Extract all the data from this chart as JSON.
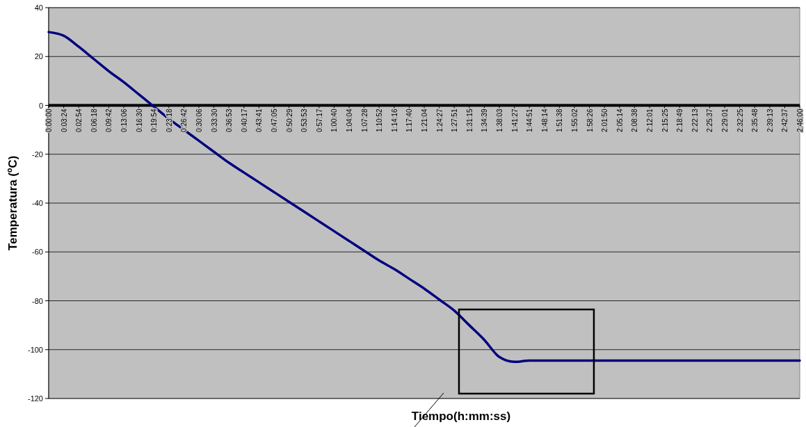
{
  "chart_data": {
    "type": "line",
    "xlabel": "Tiempo(h:mm:ss)",
    "ylabel": "Temperatura (ºC)",
    "categories": [
      "0:00:00",
      "0:03:24",
      "0:02:54",
      "0:06:18",
      "0:09:42",
      "0:13:06",
      "0:16:30",
      "0:19:54",
      "0:23:18",
      "0:26:42",
      "0:30:06",
      "0:33:30",
      "0:36:53",
      "0:40:17",
      "0:43:41",
      "0:47:05",
      "0:50:29",
      "0:53:53",
      "0:57:17",
      "1:00:40",
      "1:04:04",
      "1:07:28",
      "1:10:52",
      "1:14:16",
      "1:17:40",
      "1:21:04",
      "1:24:27",
      "1:27:51",
      "1:31:15",
      "1:34:39",
      "1:38:03",
      "1:41:27",
      "1:44:51",
      "1:48:14",
      "1:51:38",
      "1:55:02",
      "1:58:26",
      "2:01:50",
      "2:05:14",
      "2:08:38",
      "2:12:01",
      "2:15:25",
      "2:18:49",
      "2:22:13",
      "2:25:37",
      "2:29:01",
      "2:32:25",
      "2:35:48",
      "2:39:13",
      "2:42:37",
      "2:46:00"
    ],
    "series": [
      {
        "color": "#000080",
        "values": [
          30,
          28.5,
          24,
          19,
          14,
          9.5,
          4.5,
          -0.5,
          -5.5,
          -10,
          -14.5,
          -19,
          -23.5,
          -27.5,
          -31.5,
          -35.5,
          -39.5,
          -43.5,
          -47.5,
          -51.5,
          -55.5,
          -59.5,
          -63.5,
          -67,
          -71,
          -75,
          -79.5,
          -84,
          -90,
          -96,
          -103,
          -105,
          -104.5,
          -104.5,
          -104.5,
          -104.5,
          -104.5,
          -104.5,
          -104.5,
          -104.5,
          -104.5,
          -104.5,
          -104.5,
          -104.5,
          -104.5,
          -104.5,
          -104.5,
          -104.5,
          -104.5,
          -104.5,
          -104.5
        ]
      }
    ],
    "ylim": [
      -120,
      40
    ],
    "yticks": [
      -120,
      -100,
      -80,
      -60,
      -40,
      -20,
      0,
      20,
      40
    ],
    "grid": "y",
    "marker": "none",
    "line_style": "solid"
  }
}
